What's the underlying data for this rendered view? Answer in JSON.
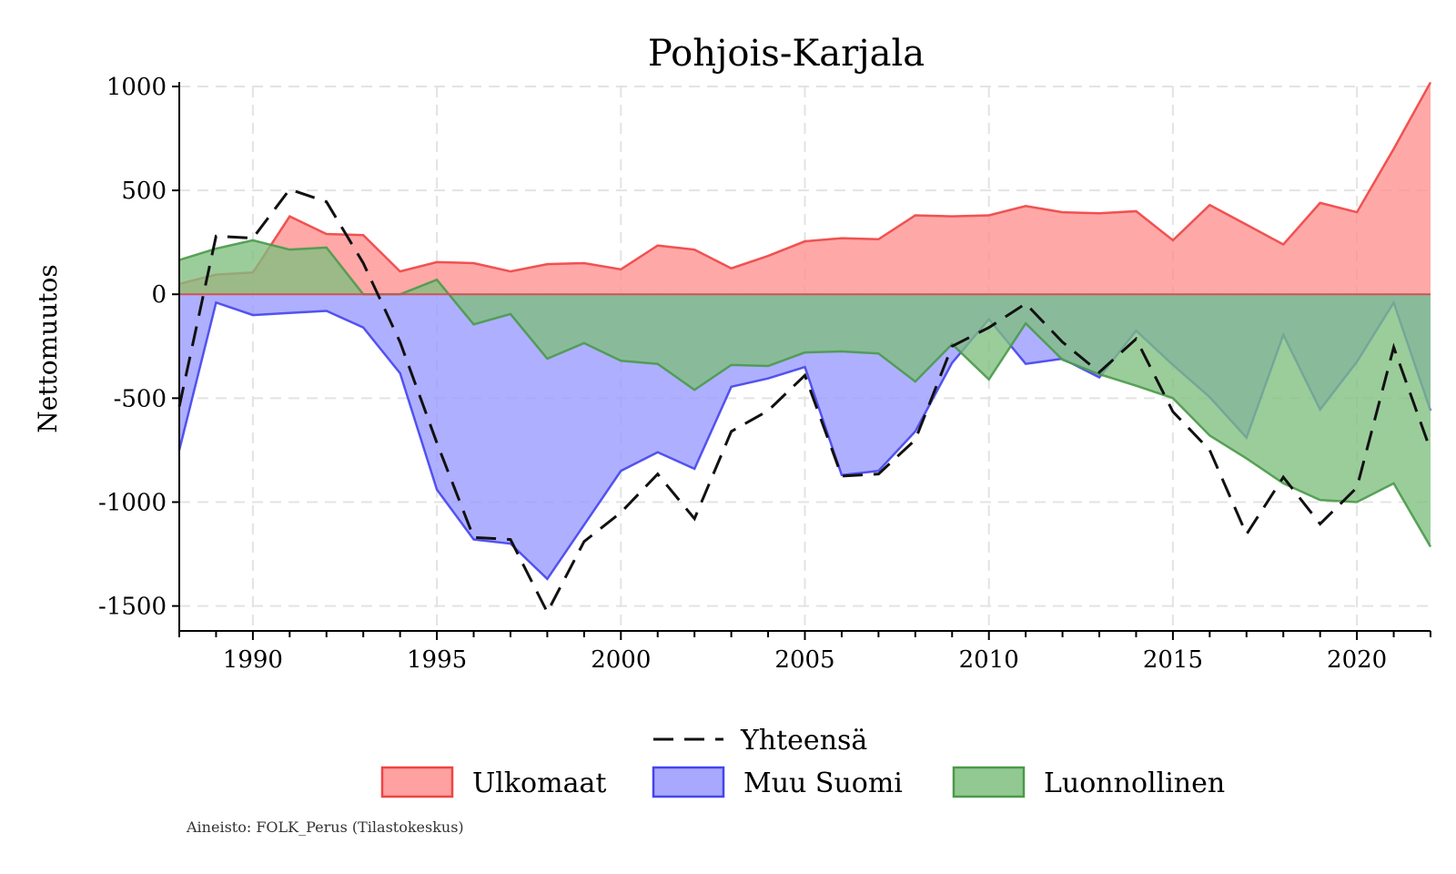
{
  "chart_data": {
    "type": "area",
    "title": "Pohjois-Karjala",
    "ylabel": "Nettomuutos",
    "xlabel": "",
    "source": "Aineisto: FOLK_Perus (Tilastokeskus)",
    "xlim": [
      1988,
      2022
    ],
    "ylim": [
      -1620,
      1000
    ],
    "xticks": [
      1990,
      1995,
      2000,
      2005,
      2010,
      2015,
      2020
    ],
    "yticks": [
      1000,
      500,
      0,
      -500,
      -1000,
      -1500
    ],
    "grid": true,
    "legend_position": "bottom",
    "x": [
      1988,
      1989,
      1990,
      1991,
      1992,
      1993,
      1994,
      1995,
      1996,
      1997,
      1998,
      1999,
      2000,
      2001,
      2002,
      2003,
      2004,
      2005,
      2006,
      2007,
      2008,
      2009,
      2010,
      2011,
      2012,
      2013,
      2014,
      2015,
      2016,
      2017,
      2018,
      2019,
      2020,
      2021,
      2022
    ],
    "series": [
      {
        "name": "Ulkomaat",
        "kind": "area",
        "fill": "#ff9090",
        "stroke": "#ee4444",
        "values": [
          50,
          95,
          105,
          375,
          290,
          285,
          110,
          155,
          150,
          110,
          145,
          150,
          120,
          235,
          215,
          125,
          185,
          255,
          270,
          265,
          380,
          375,
          380,
          425,
          395,
          390,
          400,
          260,
          430,
          335,
          240,
          440,
          395,
          700,
          1020
        ]
      },
      {
        "name": "Muu Suomi",
        "kind": "area",
        "fill": "#9999ff",
        "stroke": "#4444ee",
        "values": [
          -750,
          -40,
          -100,
          -90,
          -80,
          -160,
          -380,
          -940,
          -1180,
          -1200,
          -1370,
          -1110,
          -850,
          -760,
          -840,
          -445,
          -405,
          -350,
          -870,
          -850,
          -660,
          -330,
          -120,
          -335,
          -310,
          -400,
          -175,
          -340,
          -495,
          -690,
          -195,
          -555,
          -325,
          -40,
          -560
        ]
      },
      {
        "name": "Luonnollinen",
        "kind": "area",
        "fill": "#7fbf7f",
        "stroke": "#4a9a4a",
        "values": [
          165,
          220,
          260,
          215,
          225,
          0,
          0,
          70,
          -145,
          -95,
          -310,
          -235,
          -320,
          -335,
          -460,
          -340,
          -345,
          -280,
          -275,
          -285,
          -420,
          -240,
          -410,
          -140,
          -315,
          -385,
          -440,
          -500,
          -680,
          -790,
          -910,
          -990,
          -1000,
          -910,
          -1215
        ]
      },
      {
        "name": "Yhteensä",
        "kind": "line",
        "stroke": "#111111",
        "dash": "22,12",
        "values": [
          -540,
          280,
          270,
          505,
          445,
          150,
          -230,
          -715,
          -1170,
          -1180,
          -1530,
          -1190,
          -1050,
          -865,
          -1080,
          -660,
          -560,
          -390,
          -875,
          -865,
          -700,
          -250,
          -160,
          -45,
          -230,
          -375,
          -215,
          -565,
          -750,
          -1155,
          -880,
          -1105,
          -930,
          -255,
          -750
        ]
      }
    ]
  }
}
